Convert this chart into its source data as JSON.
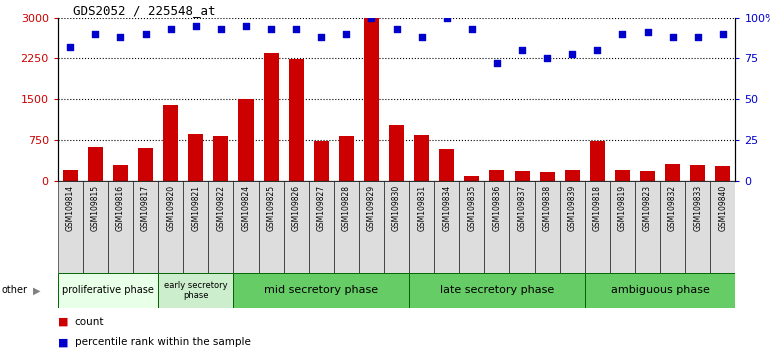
{
  "title": "GDS2052 / 225548_at",
  "samples": [
    "GSM109814",
    "GSM109815",
    "GSM109816",
    "GSM109817",
    "GSM109820",
    "GSM109821",
    "GSM109822",
    "GSM109824",
    "GSM109825",
    "GSM109826",
    "GSM109827",
    "GSM109828",
    "GSM109829",
    "GSM109830",
    "GSM109831",
    "GSM109834",
    "GSM109835",
    "GSM109836",
    "GSM109837",
    "GSM109838",
    "GSM109839",
    "GSM109818",
    "GSM109819",
    "GSM109823",
    "GSM109832",
    "GSM109833",
    "GSM109840"
  ],
  "counts": [
    200,
    620,
    280,
    600,
    1400,
    850,
    820,
    1500,
    2350,
    2230,
    730,
    820,
    3000,
    1020,
    830,
    580,
    90,
    200,
    170,
    150,
    190,
    730,
    200,
    180,
    310,
    290,
    270
  ],
  "percentiles": [
    82,
    90,
    88,
    90,
    93,
    95,
    93,
    95,
    93,
    93,
    88,
    90,
    100,
    93,
    88,
    100,
    93,
    72,
    80,
    75,
    78,
    80,
    90,
    91,
    88,
    88,
    90
  ],
  "bar_color": "#cc0000",
  "dot_color": "#0000cc",
  "ylim_left": [
    0,
    3000
  ],
  "ylim_right": [
    0,
    100
  ],
  "yticks_left": [
    0,
    750,
    1500,
    2250,
    3000
  ],
  "yticks_right": [
    0,
    25,
    50,
    75,
    100
  ],
  "phases": [
    {
      "label": "proliferative phase",
      "start": 0,
      "end": 4,
      "color": "#e8ffe8"
    },
    {
      "label": "early secretory\nphase",
      "start": 4,
      "end": 7,
      "color": "#cceecc"
    },
    {
      "label": "mid secretory phase",
      "start": 7,
      "end": 14,
      "color": "#66cc66"
    },
    {
      "label": "late secretory phase",
      "start": 14,
      "end": 21,
      "color": "#66cc66"
    },
    {
      "label": "ambiguous phase",
      "start": 21,
      "end": 27,
      "color": "#66cc66"
    }
  ],
  "other_label": "other",
  "legend_count_label": "count",
  "legend_pct_label": "percentile rank within the sample",
  "background_color": "#ffffff",
  "tick_bg_color": "#dddddd"
}
